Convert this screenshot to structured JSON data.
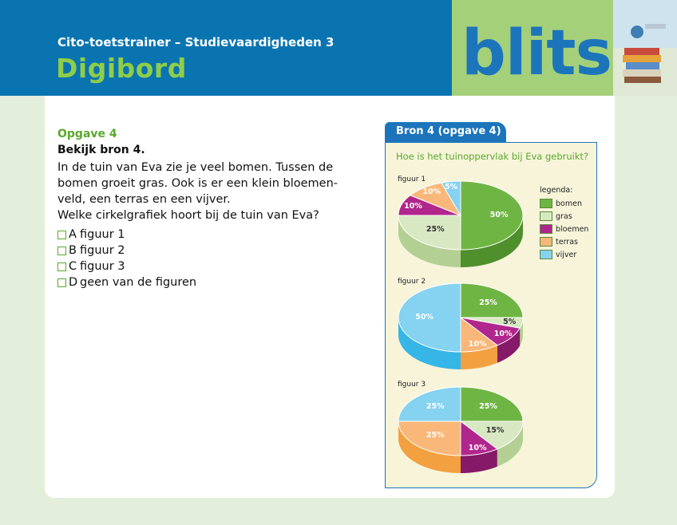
{
  "header": {
    "subtitle": "Cito-toetstrainer – Studievaardigheden 3",
    "title": "Digibord",
    "logo": "blits"
  },
  "question": {
    "number": "Opgave 4",
    "instruction": "Bekijk bron 4.",
    "lines": [
      "In de tuin van Eva zie je veel bomen. Tussen de",
      "bomen groeit gras. Ook is er een klein bloemen-",
      "veld, een terras en een vijver.",
      "Welke cirkelgrafiek hoort bij de tuin van Eva?"
    ],
    "options": [
      {
        "letter": "A",
        "text": "figuur 1"
      },
      {
        "letter": "B",
        "text": "figuur 2"
      },
      {
        "letter": "C",
        "text": "figuur 3"
      },
      {
        "letter": "D",
        "text": "geen van de figuren"
      }
    ]
  },
  "source": {
    "tab": "Bron 4 (opgave 4)",
    "question": "Hoe is het tuinoppervlak bij Eva gebruikt?"
  },
  "legend": {
    "title": "legenda:",
    "items": [
      {
        "label": "bomen",
        "color": "#6fb543"
      },
      {
        "label": "gras",
        "color": "#d7e8c2"
      },
      {
        "label": "bloemen",
        "color": "#b1268c"
      },
      {
        "label": "terras",
        "color": "#f9b779"
      },
      {
        "label": "vijver",
        "color": "#85d2f1"
      }
    ]
  },
  "chart_data": [
    {
      "type": "pie",
      "title": "figuur 1",
      "labels": [
        "bomen",
        "gras",
        "bloemen",
        "terras",
        "vijver"
      ],
      "values": [
        50,
        25,
        10,
        10,
        5
      ],
      "value_labels": [
        "50%",
        "25%",
        "10%",
        "10%",
        "5%"
      ]
    },
    {
      "type": "pie",
      "title": "figuur 2",
      "labels": [
        "bomen",
        "gras",
        "bloemen",
        "terras",
        "vijver"
      ],
      "values": [
        25,
        5,
        10,
        10,
        50
      ],
      "value_labels": [
        "25%",
        "5%",
        "10%",
        "10%",
        "50%"
      ]
    },
    {
      "type": "pie",
      "title": "figuur 3",
      "labels": [
        "bomen",
        "gras",
        "bloemen",
        "terras",
        "vijver"
      ],
      "values": [
        25,
        15,
        10,
        25,
        25
      ],
      "value_labels": [
        "25%",
        "15%",
        "10%",
        "25%",
        "25%"
      ]
    }
  ]
}
